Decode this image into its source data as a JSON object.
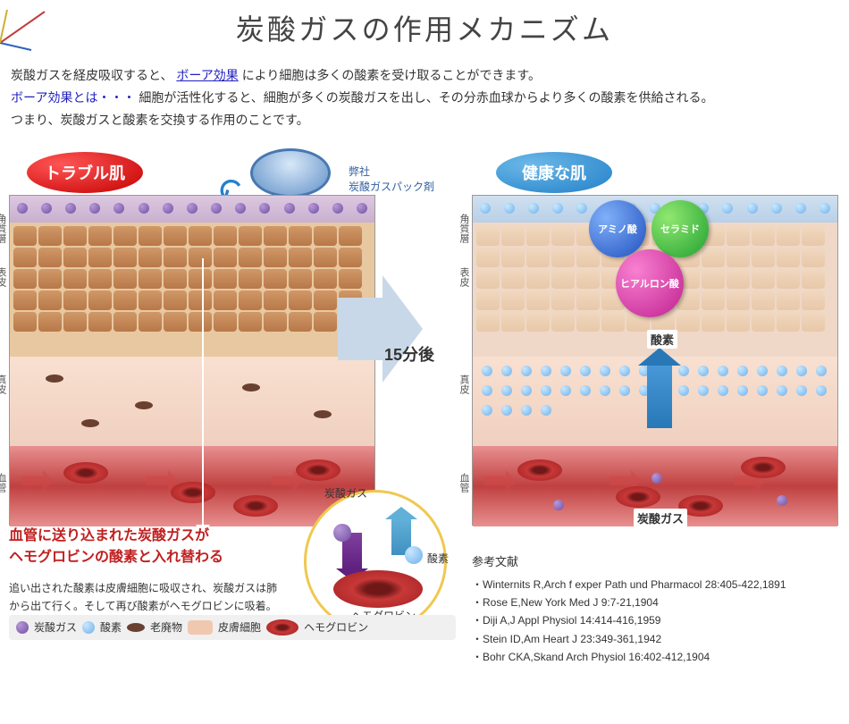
{
  "title": "炭酸ガスの作用メカニズム",
  "intro": {
    "line1a": "炭酸ガスを経皮吸収すると、",
    "link": "ボーア効果",
    "line1b": "により細胞は多くの酸素を受け取ることができます。",
    "line2a": "ボーア効果とは・・・",
    "line2b": "細胞が活性化すると、細胞が多くの炭酸ガスを出し、その分赤血球からより多くの酸素を供給される。",
    "line3": "つまり、炭酸ガスと酸素を交換する作用のことです。"
  },
  "badges": {
    "trouble": "トラブル肌",
    "healthy": "健康な肌"
  },
  "pack": {
    "label1": "弊社",
    "label2": "炭酸ガスパック剤"
  },
  "layers": {
    "stratum": "角質層",
    "epidermis": "表皮",
    "dermis": "真皮",
    "vessel": "血管"
  },
  "time": "15分後",
  "spheres": {
    "amino": "アミノ酸",
    "ceramide": "セラミド",
    "hyaluronic": "ヒアルロン酸"
  },
  "labels": {
    "oxygen": "酸素",
    "co2": "炭酸ガス",
    "hemoglobin": "ヘモグロビン"
  },
  "exchange": {
    "title1": "血管に送り込まれた炭酸ガスが",
    "title2": "ヘモグロビンの酸素と入れ替わる",
    "body": "追い出された酸素は皮膚細胞に吸収され、炭酸ガスは肺から出て行く。そして再び酸素がヘモグロビンに吸着。この活動が盛んになることで、新陳代謝が活性化する。"
  },
  "refs": {
    "title": "参考文献",
    "items": [
      "Winternits R,Arch f exper Path und Pharmacol 28:405-422,1891",
      "Rose E,New York Med J 9:7-21,1904",
      "Diji A,J Appl Physiol 14:414-416,1959",
      "Stein ID,Am Heart J 23:349-361,1942",
      "Bohr CKA,Skand Arch Physiol 16:402-412,1904"
    ]
  },
  "legend": {
    "co2": "炭酸ガス",
    "oxygen": "酸素",
    "waste": "老廃物",
    "skincell": "皮膚細胞",
    "hemoglobin": "ヘモグロビン"
  },
  "colors": {
    "purple": "#7050a0",
    "lightblue": "#70b0e8",
    "red": "#c40000",
    "blue": "#2280c8",
    "green": "#20a030",
    "magenta": "#c02090",
    "brown": "#6a4030",
    "skin": "#f0c8b0",
    "rbc": "#c83838"
  }
}
